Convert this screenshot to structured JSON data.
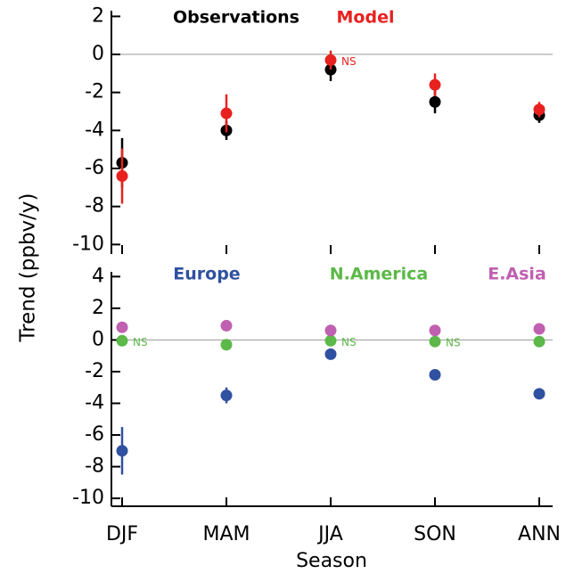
{
  "chart_data": [
    {
      "type": "errorbar",
      "ylabel": "Trend (ppbv/y)",
      "ylim": [
        -10.5,
        2.3
      ],
      "yticks": [
        2,
        0,
        -2,
        -4,
        -6,
        -8,
        -10
      ],
      "zero_line": true,
      "series": [
        {
          "name": "Observations",
          "color": "#000000",
          "values": [
            -5.7,
            -4.0,
            -0.8,
            -2.5,
            -3.2
          ],
          "errors": [
            1.3,
            0.5,
            0.6,
            0.6,
            0.4
          ]
        },
        {
          "name": "Model",
          "color": "#e8211e",
          "values": [
            -6.4,
            -3.1,
            -0.3,
            -1.6,
            -2.9
          ],
          "errors": [
            1.45,
            1.0,
            0.5,
            0.6,
            0.4
          ],
          "significance": [
            null,
            null,
            "NS",
            null,
            null
          ]
        }
      ]
    },
    {
      "type": "errorbar",
      "xlabel": "Season",
      "categories": [
        "DJF",
        "MAM",
        "JJA",
        "SON",
        "ANN"
      ],
      "ylim": [
        -10.5,
        4.3
      ],
      "yticks": [
        4,
        2,
        0,
        -2,
        -4,
        -6,
        -8,
        -10
      ],
      "zero_line": true,
      "series": [
        {
          "name": "Europe",
          "color": "#3050a0",
          "values": [
            -7.0,
            -3.5,
            -0.9,
            -2.2,
            -3.4
          ],
          "errors": [
            1.5,
            0.5,
            0.1,
            0.3,
            0.3
          ]
        },
        {
          "name": "N.America",
          "color": "#5cb848",
          "values": [
            -0.05,
            -0.3,
            -0.05,
            -0.1,
            -0.1
          ],
          "errors": [
            0.1,
            0.1,
            0.1,
            0.1,
            0.1
          ],
          "significance": [
            "NS",
            null,
            "NS",
            "NS",
            null
          ]
        },
        {
          "name": "E.Asia",
          "color": "#c060b0",
          "values": [
            0.8,
            0.9,
            0.6,
            0.6,
            0.7
          ],
          "errors": [
            0.1,
            0.1,
            0.1,
            0.1,
            0.1
          ]
        }
      ]
    }
  ]
}
